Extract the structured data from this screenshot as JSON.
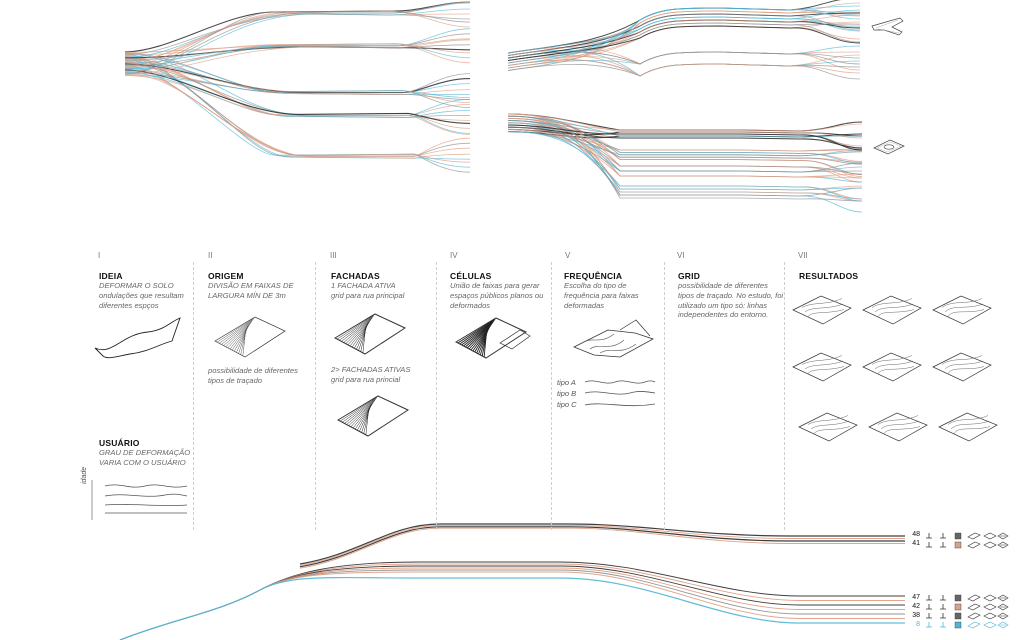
{
  "steps": [
    {
      "roman": "I",
      "title": "IDEIA",
      "desc": "DEFORMAR O SOLO",
      "desc2": "ondulações que resultam diferentes espços"
    },
    {
      "roman": "II",
      "title": "ORIGEM",
      "desc": "DIVISÃO EM FAIXAS DE LARGURA MÍN DE 3m",
      "note": "possibilidade de diferentes tipos de traçado"
    },
    {
      "roman": "III",
      "title": "FACHADAS",
      "desc": "1 FACHADA ATIVA",
      "desc2": "grid para rua principal",
      "desc3": "2> FACHADAS ATIVAS",
      "desc4": "grid para rua princial"
    },
    {
      "roman": "IV",
      "title": "CÉLULAS",
      "desc": "União de faixas para gerar espaços públicos planos ou deformados"
    },
    {
      "roman": "V",
      "title": "FREQUÊNCIA",
      "desc": "Escolha do tipo de frequência para faixas deformadas",
      "types": [
        "tipo A",
        "tipo B",
        "tipo C"
      ]
    },
    {
      "roman": "VI",
      "title": "GRID",
      "desc": "possibilidade de diferentes tipos de traçado. No estudo, foi utilizado um tipo só: linhas independentes do entorno."
    },
    {
      "roman": "VII",
      "title": "RESULTADOS"
    }
  ],
  "user": {
    "title": "USUÁRIO",
    "desc": "GRAU DE DEFORMAÇÃO VARIA COM O USUÁRIO",
    "axis": "idade"
  },
  "flow": {
    "numbers": [
      "48",
      "41",
      "47",
      "42",
      "38",
      "8"
    ]
  },
  "colors": {
    "salmon": "#e09a7e",
    "cyan": "#4fb6d6",
    "gray": "#8a8a8a",
    "dark": "#2a2a2a"
  }
}
